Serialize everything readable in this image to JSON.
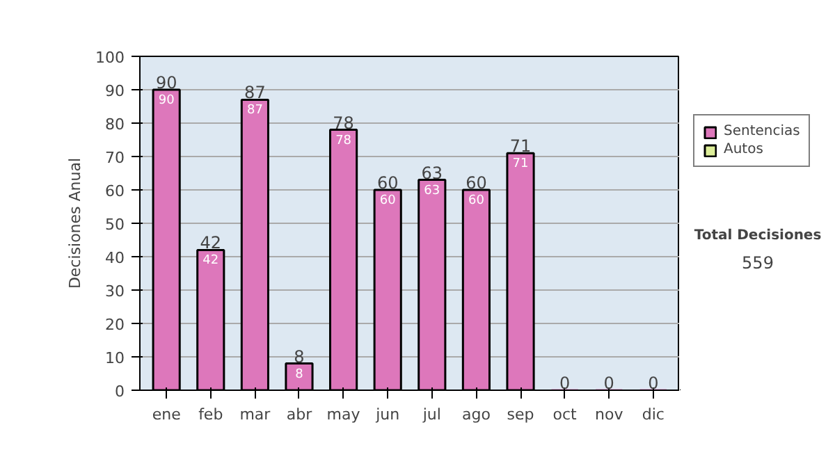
{
  "chart_data": {
    "type": "bar",
    "ylabel": "Decisiones Anual",
    "categories": [
      "ene",
      "feb",
      "mar",
      "abr",
      "may",
      "jun",
      "jul",
      "ago",
      "sep",
      "oct",
      "nov",
      "dic"
    ],
    "series": [
      {
        "name": "Sentencias",
        "color": "#dd77bb",
        "values": [
          90,
          42,
          87,
          8,
          78,
          60,
          63,
          60,
          71,
          0,
          0,
          0
        ],
        "value_labels": [
          "90",
          "42",
          "87",
          "8",
          "78",
          "60",
          "63",
          "60",
          "71",
          null,
          null,
          null
        ]
      },
      {
        "name": "Autos",
        "color": "#ddee99",
        "values": [
          null,
          null,
          null,
          null,
          null,
          null,
          null,
          null,
          null,
          null,
          null,
          null
        ]
      }
    ],
    "totals": [
      "90",
      "42",
      "87",
      "8",
      "78",
      "60",
      "63",
      "60",
      "71",
      "0",
      "0",
      "0"
    ],
    "ylim": [
      0,
      100
    ],
    "yticks": [
      0,
      10,
      20,
      30,
      40,
      50,
      60,
      70,
      80,
      90,
      100
    ],
    "grid": "y",
    "legend": "right",
    "annotations": [
      "Total Decisiones",
      "559"
    ]
  }
}
